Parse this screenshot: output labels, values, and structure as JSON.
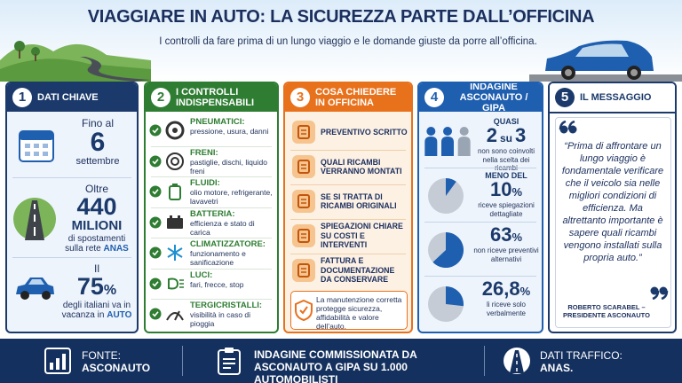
{
  "header": {
    "title": "VIAGGIARE IN AUTO: LA SICUREZZA PARTE DALL’OFFICINA",
    "subtitle": "I controlli da fare prima di un lungo viaggio e le domande giuste da porre all’officina."
  },
  "key_data": {
    "number": "1",
    "title": "DATI CHIAVE",
    "items": [
      {
        "before": "Fino al",
        "value": 6,
        "after": "settembre"
      },
      {
        "before": "Oltre",
        "value": 440,
        "unit": "MILIONI",
        "after": "di spostamenti sulla rete",
        "highlight": "ANAS"
      },
      {
        "before": "Il",
        "value": 75,
        "unit": "%",
        "after": "degli italiani va in vacanza in",
        "highlight": "AUTO"
      }
    ]
  },
  "checks": {
    "number": "2",
    "title": "I CONTROLLI INDISPENSABILI",
    "items": [
      {
        "name": "PNEUMATICI:",
        "desc": "pressione, usura, danni"
      },
      {
        "name": "FRENI:",
        "desc": "pastiglie, dischi, liquido freni"
      },
      {
        "name": "FLUIDI:",
        "desc": "olio motore, refrigerante, lavavetri"
      },
      {
        "name": "BATTERIA:",
        "desc": "efficienza e stato di carica"
      },
      {
        "name": "CLIMATIZZATORE:",
        "desc": "funzionamento e sanificazione"
      },
      {
        "name": "LUCI:",
        "desc": "fari, frecce, stop"
      },
      {
        "name": "TERGICRISTALLI:",
        "desc": "visibilità in caso di pioggia"
      }
    ]
  },
  "questions": {
    "number": "3",
    "title": "COSA CHIEDERE IN OFFICINA",
    "items": [
      "PREVENTIVO SCRITTO",
      "QUALI RICAMBI VERRANNO MONTATI",
      "SE SI TRATTA DI RICAMBI ORIGINALI",
      "SPIEGAZIONI CHIARE SU COSTI E INTERVENTI",
      "FATTURA E DOCUMENTAZIONE DA CONSERVARE"
    ],
    "note": "La manutenzione corretta protegge sicurezza, affidabilità e valore dell’auto."
  },
  "survey": {
    "number": "4",
    "title": "INDAGINE ASCONAUTO / GIPA",
    "items": [
      {
        "prefix": "QUASI",
        "value": 2,
        "connector": "su",
        "total": 3,
        "text": "non sono coinvolti nella scelta dei ricambi"
      },
      {
        "prefix": "MENO DEL",
        "value": 10,
        "unit": "%",
        "text": "riceve spiegazioni dettagliate"
      },
      {
        "value": 63,
        "unit": "%",
        "text": "non riceve preventivi alternativi"
      },
      {
        "value": 26.8,
        "value_label": "26,8",
        "unit": "%",
        "text": "li riceve solo verbalmente"
      }
    ]
  },
  "message": {
    "number": "5",
    "title": "IL MESSAGGIO",
    "quote": "“Prima di affrontare un lungo viaggio è fondamentale verificare che il veicolo sia nelle migliori condizioni di efficienza. Ma altrettanto importante è sapere quali ricambi vengono installati sulla propria auto.”",
    "author": "ROBERTO SCARABEL – PRESIDENTE ASCONAUTO"
  },
  "footer": {
    "items": [
      {
        "label": "FONTE:",
        "text": "ASCONAUTO"
      },
      {
        "label": "INDAGINE COMMISSIONATA DA ASCONAUTO A GIPA SU 1.000 AUTOMOBILISTI"
      },
      {
        "label": "DATI TRAFFICO:",
        "text": "ANAS."
      }
    ]
  }
}
